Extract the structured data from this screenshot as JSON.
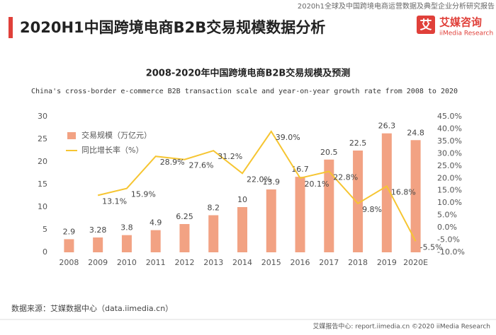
{
  "header": {
    "report": "2020h1全球及中国跨境电商运营数据及典型企业分析研究报告",
    "title": "2020H1中国跨境电商B2B交易规模数据分析"
  },
  "logo": {
    "name": "艾媒咨询",
    "sub": "iiMedia Research"
  },
  "chart_data": {
    "type": "bar-line",
    "title": "2008-2020年中国跨境电商B2B交易规模及预测",
    "subtitle": "China's cross-border e-commerce B2B transaction scale and year-on-year growth rate  from 2008 to 2020",
    "categories": [
      "2008",
      "2009",
      "2010",
      "2011",
      "2012",
      "2013",
      "2014",
      "2015",
      "2016",
      "2017",
      "2018",
      "2019",
      "2020E"
    ],
    "series": [
      {
        "name": "交易规模（万亿元）",
        "type": "bar",
        "color": "#f2a283",
        "values": [
          2.9,
          3.28,
          3.8,
          4.9,
          6.25,
          8.2,
          10,
          13.9,
          16.7,
          20.5,
          22.5,
          26.3,
          24.8
        ]
      },
      {
        "name": "同比增长率（%）",
        "type": "line",
        "color": "#f6c531",
        "axis": "y2",
        "values": [
          null,
          13.1,
          15.9,
          28.9,
          27.6,
          31.2,
          22.0,
          39.0,
          20.1,
          22.8,
          9.8,
          16.8,
          -5.5
        ],
        "value_labels": [
          null,
          "13.1%",
          "15.9%",
          "28.9%",
          "27.6%",
          "31.2%",
          "22.0%",
          "39.0%",
          "20.1%",
          "22.8%",
          "9.8%",
          "16.8%",
          "-5.5%"
        ]
      }
    ],
    "ylim": [
      0,
      30
    ],
    "yticks": [
      0,
      5,
      10,
      15,
      20,
      25,
      30
    ],
    "y2lim": [
      -10,
      45
    ],
    "y2ticks": [
      {
        "value": -10,
        "label": "-10.0%"
      },
      {
        "value": -5,
        "label": "-5.0%"
      },
      {
        "value": 0,
        "label": "0.0%"
      },
      {
        "value": 5,
        "label": "5.0%"
      },
      {
        "value": 10,
        "label": "10.0%"
      },
      {
        "value": 15,
        "label": "15.0%"
      },
      {
        "value": 20,
        "label": "20.0%"
      },
      {
        "value": 25,
        "label": "25.0%"
      },
      {
        "value": 30,
        "label": "30.0%"
      },
      {
        "value": 35,
        "label": "35.0%"
      },
      {
        "value": 40,
        "label": "40.0%"
      },
      {
        "value": 45,
        "label": "45.0%"
      }
    ],
    "legend": "top-left"
  },
  "source": "数据来源：艾媒数据中心（data.iimedia.cn）",
  "footer": "艾媒报告中心: report.iimedia.cn  ©2020  iiMedia Research"
}
